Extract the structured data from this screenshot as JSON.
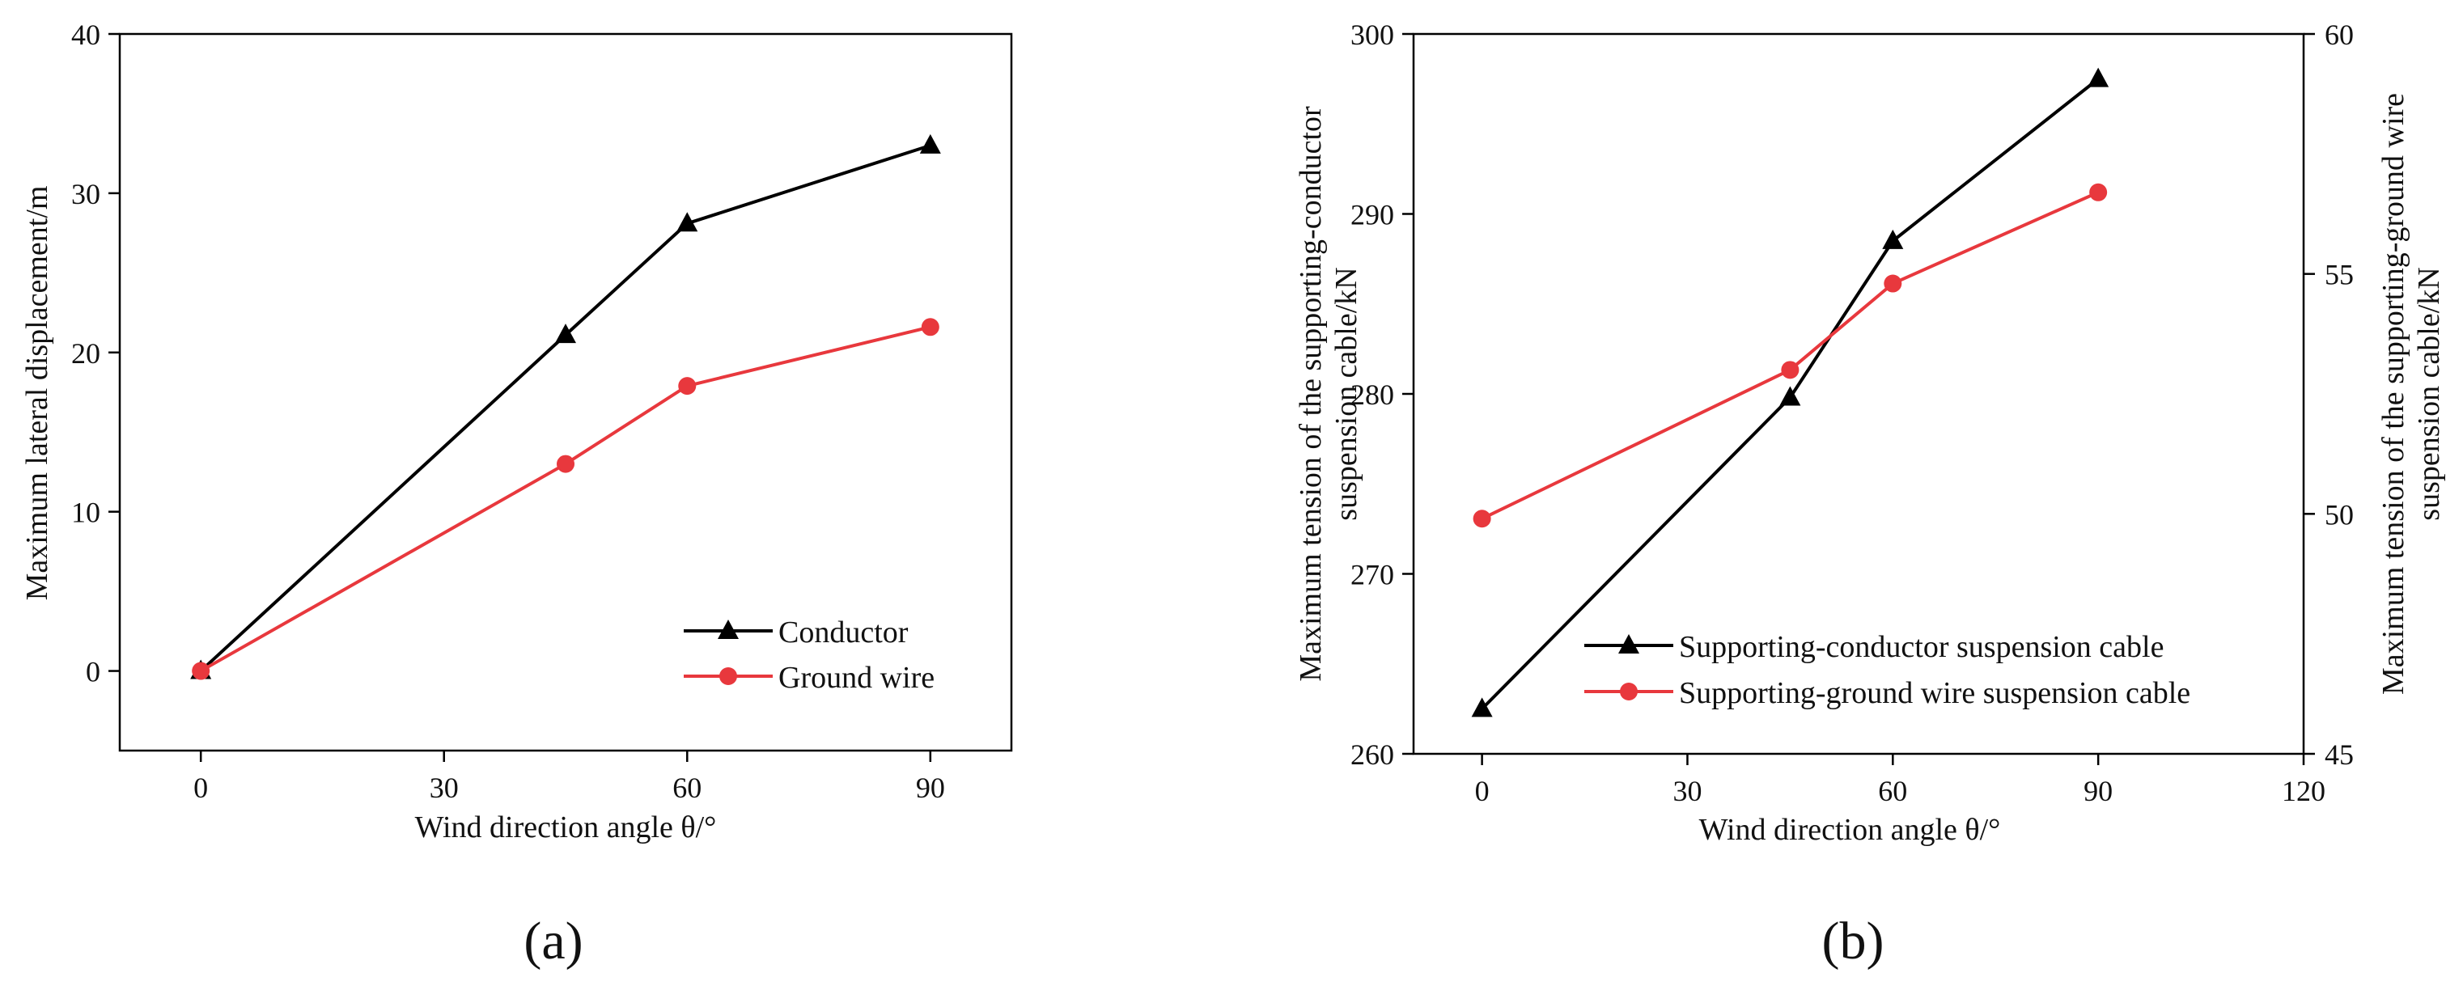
{
  "chart_data": [
    {
      "id": "a",
      "panel_label": "(a)",
      "type": "line",
      "xlabel": "Wind direction angle θ/°",
      "ylabel": "Maximum lateral displacement/m",
      "xlim": [
        -10,
        100
      ],
      "ylim": [
        -5,
        40
      ],
      "xticks": [
        0,
        30,
        60,
        90
      ],
      "yticks": [
        0,
        10,
        20,
        30,
        40
      ],
      "legend_position": "bottom-right",
      "series": [
        {
          "name": "Conductor",
          "color": "#000000",
          "marker": "triangle",
          "axis": "left",
          "x": [
            0,
            45,
            60,
            90
          ],
          "y": [
            0,
            21.1,
            28.1,
            33.0
          ]
        },
        {
          "name": "Ground wire",
          "color": "#e8383d",
          "marker": "circle",
          "axis": "left",
          "x": [
            0,
            45,
            60,
            90
          ],
          "y": [
            0,
            13.0,
            17.9,
            21.6
          ]
        }
      ]
    },
    {
      "id": "b",
      "panel_label": "(b)",
      "type": "line",
      "xlabel": "Wind direction angle θ/°",
      "ylabel": [
        "Maximum tension of the supporting-conductor",
        "suspension cable/kN"
      ],
      "y2label": [
        "Maximum tension of the supporting-ground wire",
        "suspension cable/kN"
      ],
      "xlim": [
        -10,
        120
      ],
      "ylim": [
        260,
        300
      ],
      "y2lim": [
        45,
        60
      ],
      "xticks": [
        0,
        30,
        60,
        90,
        120
      ],
      "yticks": [
        260,
        270,
        280,
        290,
        300
      ],
      "y2ticks": [
        45,
        50,
        55,
        60
      ],
      "legend_position": "bottom-right",
      "series": [
        {
          "name": "Supporting-conductor suspension cable",
          "color": "#000000",
          "marker": "triangle",
          "axis": "left",
          "x": [
            0,
            45,
            60,
            90
          ],
          "y": [
            262.5,
            279.8,
            288.5,
            297.5
          ]
        },
        {
          "name": "Supporting-ground wire suspension cable",
          "color": "#e8383d",
          "marker": "circle",
          "axis": "right",
          "x": [
            0,
            45,
            60,
            90
          ],
          "y": [
            49.9,
            53.0,
            54.8,
            56.7
          ]
        }
      ]
    }
  ]
}
